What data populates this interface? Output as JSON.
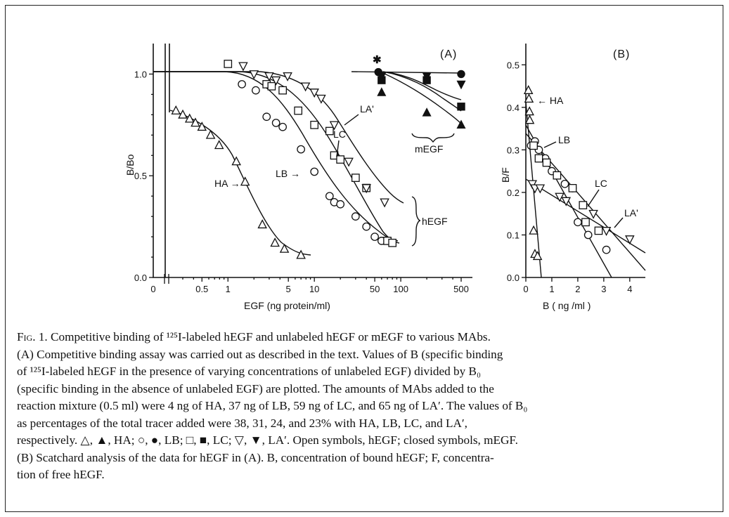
{
  "figure": {
    "panel_a_label": "(A)",
    "panel_b_label": "(B)",
    "annotations": {
      "ha": "HA →",
      "lb": "LB →",
      "lc": "LC",
      "la": "LA'",
      "hegf": "hEGF",
      "megf": "mEGF",
      "star": "✱",
      "ha_b": "← HA",
      "lb_b": "LB",
      "lc_b": "LC",
      "la_b": "LA'"
    }
  },
  "chart_data": [
    {
      "type": "scatter",
      "panel": "A",
      "xlabel": "EGF (ng protein/ml)",
      "ylabel": "B/Bo",
      "xscale": "log",
      "xlim": [
        0.2,
        600
      ],
      "ylim": [
        0,
        1.15
      ],
      "xticks": [
        "0",
        "0.5",
        "1",
        "5",
        "10",
        "50",
        "100",
        "500"
      ],
      "yticks": [
        "0.0",
        "0.5",
        "1.0"
      ],
      "series": [
        {
          "name": "HA",
          "ligand": "hEGF",
          "marker": "triangle-up",
          "filled": false,
          "x": [
            0.25,
            0.3,
            0.36,
            0.42,
            0.5,
            0.63,
            0.79,
            1.25,
            1.58,
            2.5,
            3.5,
            4.5,
            7
          ],
          "y": [
            0.82,
            0.8,
            0.78,
            0.76,
            0.74,
            0.7,
            0.65,
            0.57,
            0.47,
            0.26,
            0.17,
            0.14,
            0.11
          ]
        },
        {
          "name": "LB",
          "ligand": "hEGF",
          "marker": "circle",
          "filled": false,
          "x": [
            1.45,
            2.1,
            2.8,
            3.6,
            4.3,
            7,
            10,
            15,
            17,
            20,
            30,
            40,
            50,
            60
          ],
          "y": [
            0.95,
            0.92,
            0.79,
            0.76,
            0.74,
            0.63,
            0.52,
            0.4,
            0.37,
            0.36,
            0.3,
            0.25,
            0.2,
            0.18
          ]
        },
        {
          "name": "LC",
          "ligand": "hEGF",
          "marker": "square",
          "filled": false,
          "x": [
            1.0,
            2.8,
            3.2,
            4.3,
            6.5,
            10,
            15,
            17,
            20,
            30,
            40,
            70,
            80
          ],
          "y": [
            1.05,
            0.95,
            0.94,
            0.92,
            0.82,
            0.75,
            0.72,
            0.6,
            0.58,
            0.49,
            0.44,
            0.18,
            0.17
          ]
        },
        {
          "name": "LA'",
          "ligand": "hEGF",
          "marker": "triangle-down",
          "filled": false,
          "x": [
            1.5,
            2.0,
            3.0,
            3.6,
            4.9,
            7.9,
            10,
            12,
            17,
            25,
            40,
            65
          ],
          "y": [
            1.04,
            1.0,
            0.99,
            0.97,
            0.99,
            0.94,
            0.91,
            0.88,
            0.75,
            0.57,
            0.44,
            0.37
          ]
        },
        {
          "name": "HA",
          "ligand": "mEGF",
          "marker": "triangle-up",
          "filled": true,
          "x": [
            60,
            200,
            500
          ],
          "y": [
            0.91,
            0.81,
            0.75
          ]
        },
        {
          "name": "LB",
          "ligand": "mEGF",
          "marker": "circle",
          "filled": true,
          "x": [
            55,
            500
          ],
          "y": [
            1.01,
            1.0
          ]
        },
        {
          "name": "LC",
          "ligand": "mEGF",
          "marker": "square",
          "filled": true,
          "x": [
            60,
            200,
            500
          ],
          "y": [
            0.97,
            0.97,
            0.84
          ]
        },
        {
          "name": "LA'",
          "ligand": "mEGF",
          "marker": "triangle-down",
          "filled": true,
          "x": [
            60,
            200,
            500
          ],
          "y": [
            0.99,
            0.99,
            0.95
          ]
        }
      ]
    },
    {
      "type": "scatter",
      "panel": "B",
      "xlabel": "B ( ng /ml )",
      "ylabel": "B/F",
      "xlim": [
        0,
        4.6
      ],
      "ylim": [
        0,
        0.55
      ],
      "xticks": [
        "0",
        "1",
        "2",
        "3",
        "4"
      ],
      "yticks": [
        "0.0",
        "0.1",
        "0.2",
        "0.3",
        "0.4",
        "0.5"
      ],
      "series": [
        {
          "name": "HA",
          "marker": "triangle-up",
          "filled": false,
          "x": [
            0.1,
            0.12,
            0.14,
            0.15,
            0.3,
            0.35,
            0.45
          ],
          "y": [
            0.44,
            0.42,
            0.39,
            0.37,
            0.11,
            0.055,
            0.05
          ]
        },
        {
          "name": "LB",
          "marker": "circle",
          "filled": false,
          "x": [
            0.2,
            0.35,
            0.5,
            0.75,
            1.0,
            1.5,
            1.8,
            2.0,
            2.4,
            3.1
          ],
          "y": [
            0.31,
            0.32,
            0.3,
            0.28,
            0.25,
            0.22,
            0.21,
            0.13,
            0.1,
            0.065
          ]
        },
        {
          "name": "LC",
          "marker": "square",
          "filled": false,
          "x": [
            0.3,
            0.5,
            0.8,
            1.2,
            1.8,
            2.2,
            2.3,
            2.8
          ],
          "y": [
            0.31,
            0.28,
            0.27,
            0.24,
            0.21,
            0.17,
            0.13,
            0.11
          ]
        },
        {
          "name": "LA'",
          "marker": "triangle-down",
          "filled": false,
          "x": [
            0.25,
            0.35,
            0.55,
            1.3,
            1.55,
            2.6,
            3.1,
            4.0
          ],
          "y": [
            0.22,
            0.21,
            0.21,
            0.19,
            0.18,
            0.15,
            0.11,
            0.09
          ]
        }
      ]
    }
  ],
  "caption": {
    "fig_label": "Fig. 1.",
    "lines": [
      "Competitive binding of ¹²⁵I-labeled hEGF and unlabeled hEGF or mEGF to various MAbs.",
      "(A) Competitive binding assay was carried out as described in the text. Values of B (specific binding",
      "of ¹²⁵I-labeled hEGF in the presence of varying concentrations of unlabeled EGF) divided by B₀",
      "(specific binding in the absence of unlabeled EGF) are plotted. The amounts of MAbs added to the",
      "reaction mixture (0.5 ml) were 4 ng of HA, 37 ng of LB, 59 ng of LC, and 65 ng of LA′. The values of B₀",
      "as percentages of the total tracer added were 38, 31, 24, and 23% with HA, LB, LC, and LA′,",
      "respectively. △, ▲, HA; ○, ●, LB; □, ■, LC; ▽, ▼, LA′. Open symbols, hEGF; closed symbols, mEGF.",
      "(B) Scatchard analysis of the data for hEGF in (A). B, concentration of bound hEGF; F, concentra-",
      "tion of free hEGF."
    ]
  }
}
